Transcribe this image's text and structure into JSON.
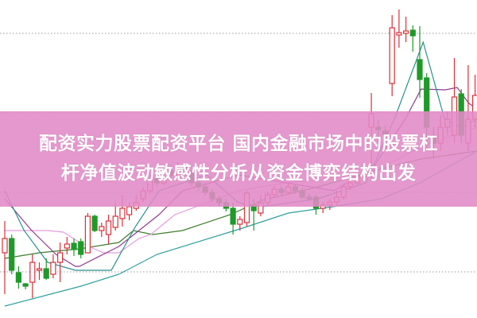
{
  "banner": {
    "line1": "配资实力股票配资平台 国内金融市场中的股票杠",
    "line2": "杆净值波动敏感性分析从资金博弈结构出发",
    "color": "#e18ac6"
  },
  "chart_data": {
    "type": "candlestick",
    "title": "",
    "xlabel": "",
    "ylabel": "",
    "ylim": [
      0,
      40
    ],
    "grid": "horizontal-dotted",
    "gridlines": [
      5.8,
      15.8,
      25.8,
      35.8
    ],
    "colors": {
      "up": "#d9303a",
      "down": "#1f9a2a",
      "grid": "#9a9a9a"
    },
    "candles": [
      [
        0,
        8.2,
        12.2,
        3.0,
        10.0
      ],
      [
        1,
        10.0,
        10.5,
        5.5,
        6.0
      ],
      [
        2,
        5.7,
        6.5,
        3.7,
        4.5
      ],
      [
        3,
        4.3,
        4.4,
        3.6,
        4.0
      ],
      [
        4,
        4.5,
        8.0,
        2.5,
        7.0
      ],
      [
        5,
        6.0,
        7.0,
        4.8,
        6.2
      ],
      [
        6,
        6.2,
        7.5,
        4.8,
        5.0
      ],
      [
        7,
        5.5,
        8.0,
        5.0,
        7.0
      ],
      [
        8,
        7.0,
        9.5,
        4.5,
        8.2
      ],
      [
        9,
        8.8,
        10.2,
        8.0,
        9.3
      ],
      [
        10,
        9.4,
        10.0,
        7.8,
        8.6
      ],
      [
        11,
        9.6,
        10.0,
        7.5,
        8.0
      ],
      [
        12,
        8.2,
        13.2,
        8.5,
        12.8
      ],
      [
        13,
        12.8,
        13.0,
        10.8,
        11.0
      ],
      [
        14,
        11.0,
        12.0,
        10.2,
        11.5
      ],
      [
        15,
        10.5,
        13.0,
        9.3,
        12.2
      ],
      [
        16,
        11.4,
        14.5,
        11.0,
        12.8
      ],
      [
        17,
        12.5,
        15.5,
        11.5,
        13.8
      ],
      [
        18,
        13.0,
        14.5,
        12.3,
        14.0
      ],
      [
        19,
        13.8,
        15.5,
        13.5,
        14.5
      ],
      [
        20,
        15.0,
        16.5,
        14.6,
        16.0
      ],
      [
        21,
        16.0,
        18.0,
        15.6,
        17.5
      ],
      [
        22,
        17.5,
        18.2,
        16.6,
        17.0
      ],
      [
        23,
        17.0,
        19.0,
        16.7,
        18.5
      ],
      [
        24,
        18.5,
        19.2,
        17.6,
        18.0
      ],
      [
        25,
        18.0,
        19.6,
        17.7,
        19.0
      ],
      [
        26,
        19.0,
        19.4,
        17.8,
        18.2
      ],
      [
        27,
        18.2,
        18.6,
        16.6,
        17.0
      ],
      [
        28,
        17.0,
        17.4,
        16.0,
        16.5
      ],
      [
        29,
        16.5,
        17.0,
        15.4,
        15.8
      ],
      [
        30,
        15.8,
        16.2,
        14.6,
        15.0
      ],
      [
        31,
        15.0,
        15.4,
        14.0,
        14.5
      ],
      [
        32,
        14.5,
        15.0,
        13.4,
        13.8
      ],
      [
        33,
        13.8,
        14.5,
        10.5,
        11.8
      ],
      [
        34,
        11.8,
        12.8,
        11.0,
        12.4
      ],
      [
        35,
        12.0,
        16.0,
        11.5,
        15.7
      ],
      [
        36,
        14.2,
        15.0,
        11.0,
        13.5
      ],
      [
        37,
        13.2,
        15.5,
        12.8,
        14.5
      ],
      [
        38,
        14.5,
        15.9,
        14.2,
        15.5
      ],
      [
        39,
        15.5,
        16.6,
        15.2,
        16.2
      ],
      [
        40,
        16.2,
        16.6,
        15.4,
        15.8
      ],
      [
        41,
        15.8,
        16.9,
        15.5,
        16.5
      ],
      [
        42,
        16.5,
        16.8,
        15.6,
        16.0
      ],
      [
        43,
        16.0,
        16.3,
        14.9,
        15.2
      ],
      [
        44,
        15.2,
        15.6,
        14.7,
        15.0
      ],
      [
        45,
        15.2,
        15.5,
        13.0,
        13.8
      ],
      [
        46,
        13.8,
        14.6,
        13.2,
        14.2
      ],
      [
        47,
        14.2,
        15.0,
        13.6,
        14.6
      ],
      [
        48,
        14.6,
        16.0,
        14.2,
        15.2
      ],
      [
        49,
        15.2,
        16.9,
        14.9,
        16.5
      ],
      [
        50,
        16.5,
        17.4,
        16.1,
        17.0
      ],
      [
        51,
        17.0,
        18.2,
        16.6,
        17.8
      ],
      [
        52,
        17.8,
        18.6,
        17.3,
        18.2
      ],
      [
        53,
        24.0,
        28.3,
        17.5,
        25.7
      ],
      [
        54,
        24.0,
        25.0,
        22.0,
        23.7
      ],
      [
        55,
        23.5,
        24.2,
        22.4,
        23.0
      ],
      [
        56,
        29.5,
        38.1,
        27.9,
        36.5
      ],
      [
        57,
        35.6,
        38.8,
        34.0,
        35.9
      ],
      [
        58,
        35.8,
        37.9,
        34.7,
        36.1
      ],
      [
        59,
        36.2,
        36.8,
        33.5,
        35.5
      ],
      [
        60,
        32.5,
        36.7,
        27.7,
        30.0
      ],
      [
        61,
        30.2,
        30.8,
        21.0,
        24.0
      ],
      [
        62,
        23.0,
        24.0,
        20.0,
        22.0
      ],
      [
        63,
        22.0,
        25.5,
        21.0,
        24.0
      ],
      [
        64,
        24.0,
        26.0,
        23.0,
        25.0
      ],
      [
        65,
        23.0,
        32.7,
        22.0,
        27.8
      ],
      [
        66,
        28.2,
        28.8,
        22.0,
        23.0
      ],
      [
        67,
        22.0,
        31.8,
        21.0,
        25.0
      ],
      [
        68,
        25.0,
        30.6,
        24.0,
        28.0
      ]
    ],
    "candle_fields": [
      "index",
      "open",
      "high",
      "low",
      "close"
    ],
    "lines": [
      {
        "color": "#2f9f9c",
        "points": [
          [
            0,
            1.5
          ],
          [
            11,
            4.0
          ],
          [
            16.5,
            5.5
          ],
          [
            22,
            8.0
          ],
          [
            34,
            11.2
          ],
          [
            41,
            13.2
          ],
          [
            47.5,
            14.0
          ],
          [
            54.5,
            15.0
          ],
          [
            60,
            17.0
          ],
          [
            68.3,
            21.0
          ]
        ]
      },
      {
        "color": "#3d7d2b",
        "points": [
          [
            0,
            7.5
          ],
          [
            5,
            8.2
          ],
          [
            10.8,
            8.7
          ],
          [
            16.5,
            9.5
          ],
          [
            18.6,
            11.0
          ],
          [
            21.4,
            10.5
          ],
          [
            25.7,
            11.0
          ],
          [
            32.6,
            13.0
          ],
          [
            37.2,
            14.8
          ],
          [
            45.3,
            16.5
          ],
          [
            53.3,
            18.5
          ],
          [
            60.2,
            20.0
          ],
          [
            68.3,
            21.0
          ]
        ]
      },
      {
        "color": "#e59be0",
        "points": [
          [
            0,
            11.0
          ],
          [
            6.2,
            11.0
          ],
          [
            8.5,
            10.8
          ],
          [
            10.8,
            9.5
          ],
          [
            14.3,
            8.2
          ],
          [
            16.5,
            8.2
          ],
          [
            19.4,
            10.0
          ],
          [
            21.1,
            10.5
          ],
          [
            24.6,
            13.0
          ],
          [
            29.2,
            14.5
          ],
          [
            33.8,
            16.0
          ],
          [
            40.7,
            17.0
          ],
          [
            47.6,
            17.5
          ],
          [
            54.5,
            19.0
          ],
          [
            61.4,
            22.0
          ],
          [
            68.3,
            24.0
          ]
        ]
      },
      {
        "color": "#8d3d8d",
        "points": [
          [
            0,
            15.0
          ],
          [
            3.9,
            11.0
          ],
          [
            7.4,
            8.0
          ],
          [
            10.2,
            6.5
          ],
          [
            10.8,
            6.5
          ],
          [
            16.5,
            9.0
          ],
          [
            22.3,
            13.0
          ],
          [
            25.7,
            16.0
          ],
          [
            33.8,
            18.0
          ],
          [
            40.7,
            17.0
          ],
          [
            47.6,
            16.0
          ],
          [
            53.3,
            19.0
          ],
          [
            57.9,
            25.0
          ],
          [
            60.2,
            28.8
          ],
          [
            63.7,
            28.7
          ],
          [
            65.4,
            29.0
          ],
          [
            67.1,
            27.0
          ],
          [
            68.3,
            26.3
          ]
        ]
      },
      {
        "color": "#2a8f8f",
        "points": [
          [
            0,
            16.0
          ],
          [
            2.8,
            11.0
          ],
          [
            6.2,
            7.0
          ],
          [
            10.2,
            6.0
          ],
          [
            15.4,
            6.0
          ],
          [
            18.9,
            11.5
          ],
          [
            22.3,
            16.0
          ],
          [
            29.2,
            18.0
          ],
          [
            33.8,
            14.5
          ],
          [
            37.2,
            14.0
          ],
          [
            45.3,
            15.0
          ],
          [
            52.2,
            17.0
          ],
          [
            56.4,
            25.2
          ],
          [
            60.5,
            34.7
          ],
          [
            63.6,
            25.0
          ],
          [
            66,
            24.0
          ],
          [
            68.3,
            25.0
          ]
        ]
      }
    ]
  }
}
